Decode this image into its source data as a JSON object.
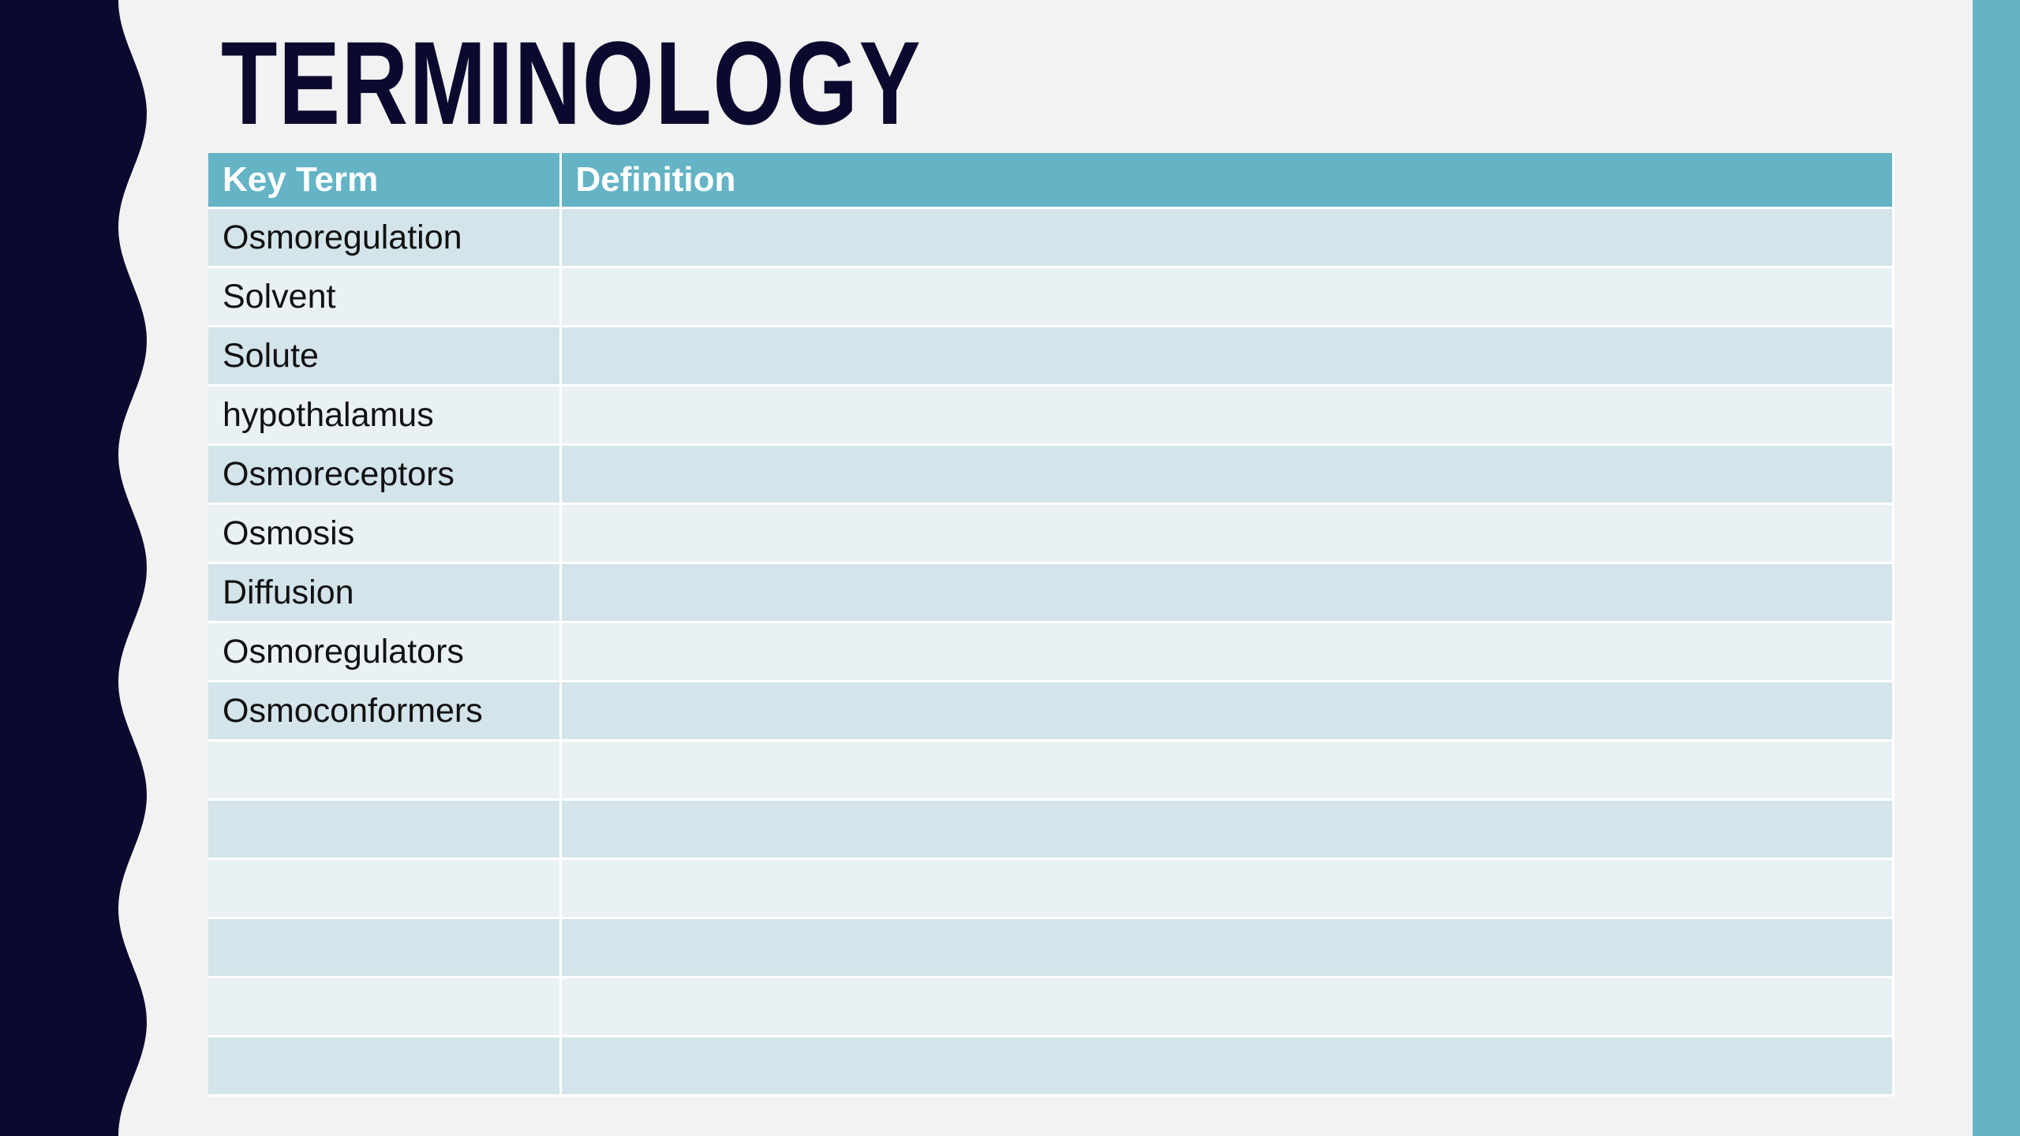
{
  "slide": {
    "title": "TERMINOLOGY",
    "colors": {
      "background": "#f2f2f2",
      "wave_band": "#0b0a2e",
      "accent": "#64b4c6",
      "row_dark": "#d3e4ea",
      "row_light": "#eaf1f5"
    }
  },
  "table": {
    "headers": [
      "Key Term",
      "Definition"
    ],
    "rows": [
      {
        "term": "Osmoregulation",
        "definition": ""
      },
      {
        "term": "Solvent",
        "definition": ""
      },
      {
        "term": "Solute",
        "definition": ""
      },
      {
        "term": "hypothalamus",
        "definition": ""
      },
      {
        "term": "Osmoreceptors",
        "definition": ""
      },
      {
        "term": "Osmosis",
        "definition": ""
      },
      {
        "term": "Diffusion",
        "definition": ""
      },
      {
        "term": "Osmoregulators",
        "definition": ""
      },
      {
        "term": "Osmoconformers",
        "definition": ""
      },
      {
        "term": "",
        "definition": ""
      },
      {
        "term": "",
        "definition": ""
      },
      {
        "term": "",
        "definition": ""
      },
      {
        "term": "",
        "definition": ""
      },
      {
        "term": "",
        "definition": ""
      },
      {
        "term": "",
        "definition": ""
      }
    ]
  }
}
